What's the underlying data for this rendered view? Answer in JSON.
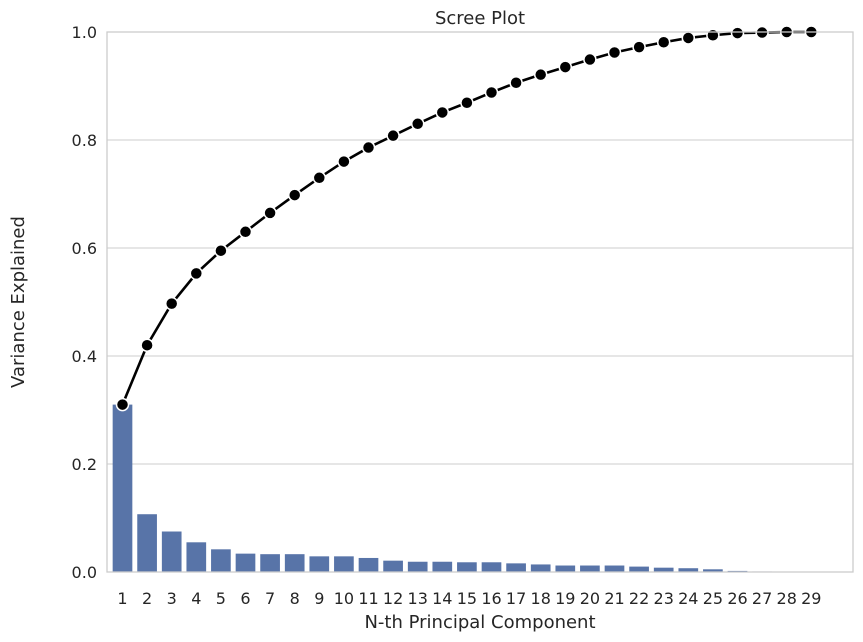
{
  "chart_data": {
    "type": "bar",
    "title": "Scree Plot",
    "xlabel": "N-th Principal Component",
    "ylabel": "Variance Explained",
    "ylim": [
      0,
      1.0
    ],
    "yticks": [
      "0.0",
      "0.2",
      "0.4",
      "0.6",
      "0.8",
      "1.0"
    ],
    "grid": true,
    "categories": [
      "1",
      "2",
      "3",
      "4",
      "5",
      "6",
      "7",
      "8",
      "9",
      "10",
      "11",
      "12",
      "13",
      "14",
      "15",
      "16",
      "17",
      "18",
      "19",
      "20",
      "21",
      "22",
      "23",
      "24",
      "25",
      "26",
      "27",
      "28",
      "29"
    ],
    "series": [
      {
        "type": "bar",
        "color": "#5874a8",
        "values": [
          0.31,
          0.107,
          0.075,
          0.055,
          0.042,
          0.034,
          0.033,
          0.033,
          0.029,
          0.029,
          0.026,
          0.021,
          0.019,
          0.019,
          0.018,
          0.018,
          0.016,
          0.014,
          0.012,
          0.012,
          0.012,
          0.01,
          0.008,
          0.007,
          0.005,
          0.002,
          0.001,
          0.0005,
          0.0003
        ]
      },
      {
        "type": "line",
        "color": "#000000",
        "marker": "circle",
        "values": [
          0.31,
          0.42,
          0.497,
          0.553,
          0.595,
          0.63,
          0.665,
          0.698,
          0.73,
          0.76,
          0.786,
          0.808,
          0.83,
          0.851,
          0.869,
          0.888,
          0.906,
          0.921,
          0.935,
          0.949,
          0.962,
          0.972,
          0.981,
          0.989,
          0.994,
          0.998,
          0.999,
          1.0,
          1.0
        ]
      }
    ]
  }
}
